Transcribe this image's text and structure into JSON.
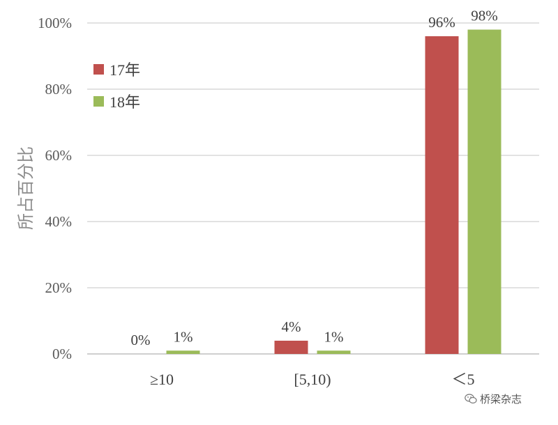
{
  "chart_data": {
    "type": "bar",
    "categories": [
      "≥10",
      "[5,10)",
      "＜5"
    ],
    "series": [
      {
        "name": "17年",
        "values": [
          0,
          4,
          96
        ],
        "labels": [
          "0%",
          "4%",
          "96%"
        ],
        "color": "#c0504d"
      },
      {
        "name": "18年",
        "values": [
          1,
          1,
          98
        ],
        "labels": [
          "1%",
          "1%",
          "98%"
        ],
        "color": "#9bbb59"
      }
    ],
    "ylabel": "所占百分比",
    "xlabel": "",
    "ylim": [
      0,
      100
    ],
    "yticks": [
      "0%",
      "20%",
      "40%",
      "60%",
      "80%",
      "100%"
    ],
    "grid": true,
    "legend_position": "top-left"
  },
  "watermark": "桥梁杂志"
}
